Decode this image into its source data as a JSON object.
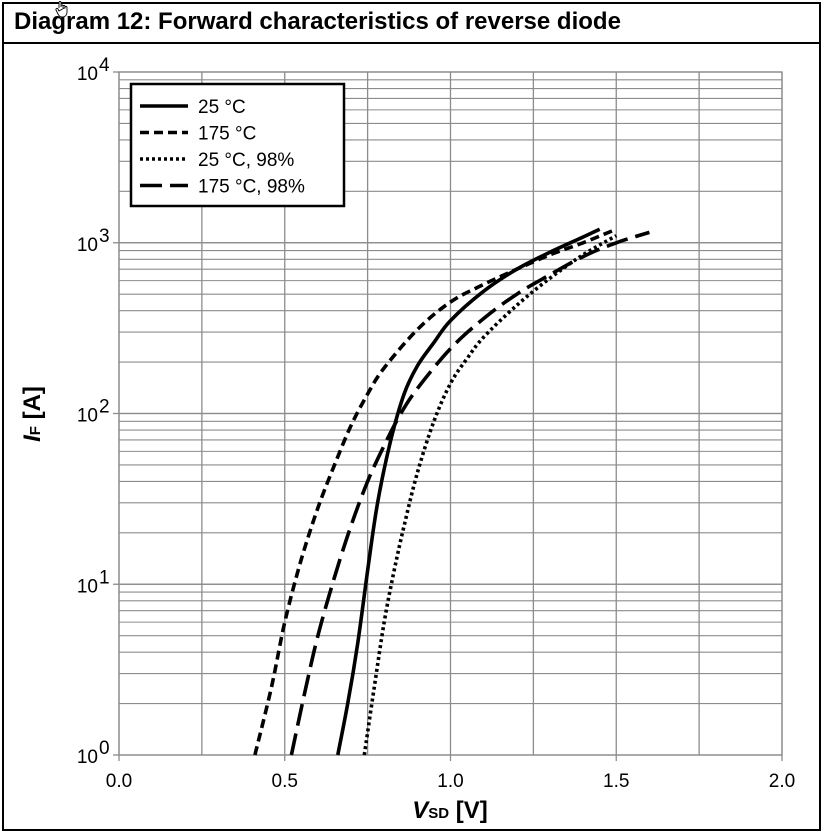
{
  "title": "Diagram 12: Forward characteristics of reverse diode",
  "chart_data": {
    "type": "line",
    "title": "Diagram 12: Forward characteristics of reverse diode",
    "xlabel": {
      "main": "V",
      "sub": "SD",
      "unit": " [V]"
    },
    "ylabel": {
      "main": "I",
      "sub": "F",
      "unit": " [A]"
    },
    "xlim": [
      0,
      2
    ],
    "ylim": [
      1,
      10000
    ],
    "yscale": "log",
    "grid": true,
    "legend_position": "top-left",
    "x_ticks": [
      {
        "value": 0,
        "label": "0.0"
      },
      {
        "value": 0.5,
        "label": "0.5"
      },
      {
        "value": 1.0,
        "label": "1.0"
      },
      {
        "value": 1.5,
        "label": "1.5"
      },
      {
        "value": 2.0,
        "label": "2.0"
      }
    ],
    "y_ticks": [
      {
        "value": 1,
        "base": "10",
        "exp": "0"
      },
      {
        "value": 10,
        "base": "10",
        "exp": "1"
      },
      {
        "value": 100,
        "base": "10",
        "exp": "2"
      },
      {
        "value": 1000,
        "base": "10",
        "exp": "3"
      },
      {
        "value": 10000,
        "base": "10",
        "exp": "4"
      }
    ],
    "series": [
      {
        "name": "25 °C",
        "dash": "solid",
        "x": [
          0.66,
          0.69,
          0.72,
          0.75,
          0.78,
          0.82,
          0.86,
          0.9,
          0.95,
          1.0,
          1.1,
          1.2,
          1.3,
          1.4,
          1.45
        ],
        "y": [
          1,
          2,
          4.5,
          12,
          30,
          70,
          130,
          190,
          260,
          350,
          520,
          700,
          880,
          1080,
          1200
        ]
      },
      {
        "name": "175 °C",
        "dash": "short",
        "x": [
          0.41,
          0.46,
          0.5,
          0.55,
          0.6,
          0.65,
          0.7,
          0.75,
          0.8,
          0.9,
          1.0,
          1.1,
          1.2,
          1.3,
          1.4,
          1.5
        ],
        "y": [
          1,
          2.5,
          6,
          14,
          28,
          50,
          85,
          130,
          185,
          310,
          450,
          570,
          700,
          850,
          1000,
          1200
        ]
      },
      {
        "name": "25 °C, 98%",
        "dash": "dot",
        "x": [
          0.74,
          0.77,
          0.8,
          0.83,
          0.86,
          0.9,
          0.95,
          1.0,
          1.05,
          1.1,
          1.2,
          1.3,
          1.4,
          1.5
        ],
        "y": [
          1,
          2.5,
          6,
          12,
          22,
          45,
          90,
          150,
          210,
          280,
          430,
          620,
          850,
          1100
        ]
      },
      {
        "name": "175 °C, 98%",
        "dash": "long",
        "x": [
          0.52,
          0.56,
          0.6,
          0.65,
          0.7,
          0.75,
          0.8,
          0.85,
          0.9,
          1.0,
          1.1,
          1.2,
          1.3,
          1.4,
          1.5,
          1.6
        ],
        "y": [
          1,
          2.3,
          5,
          11,
          22,
          40,
          65,
          100,
          140,
          240,
          360,
          500,
          650,
          830,
          1000,
          1150
        ]
      }
    ]
  }
}
